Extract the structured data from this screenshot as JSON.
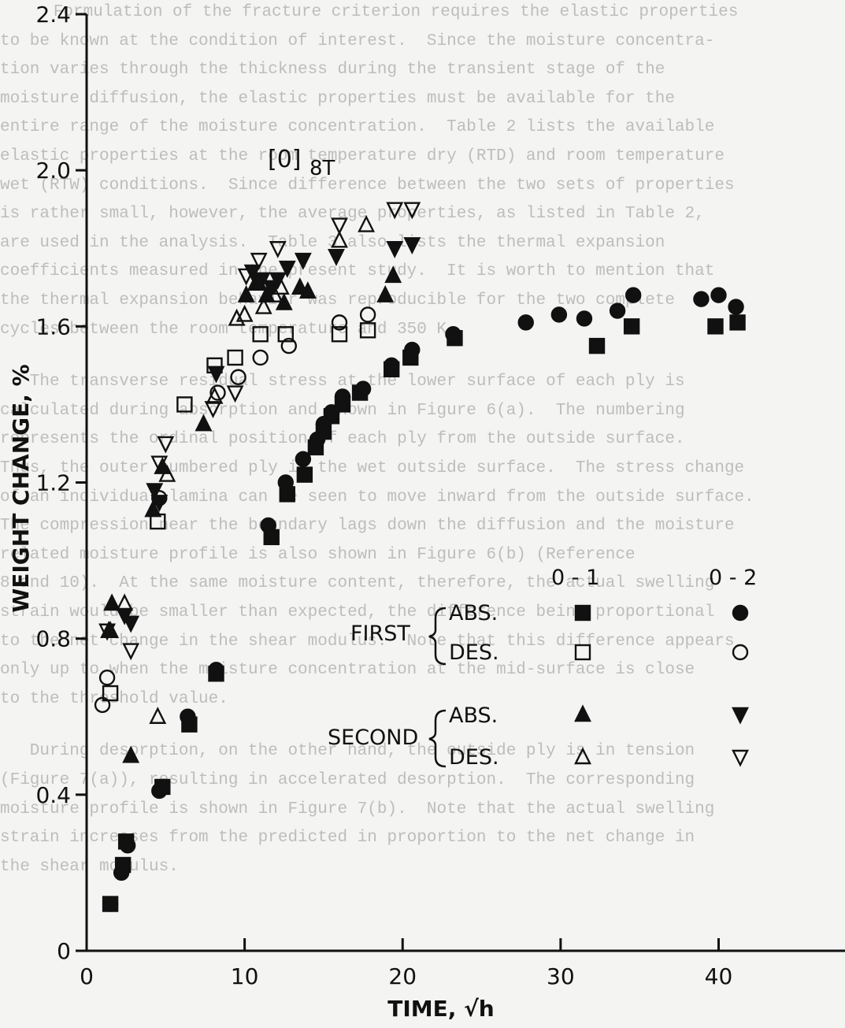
{
  "background_text": [
    "   Formulation of the fracture criterion requires the elastic properties",
    "to be known at the condition of interest.  Since the moisture concentra-",
    "tion varies through the thickness during the transient stage of the",
    "moisture diffusion, the elastic properties must be available for the",
    "entire range of the moisture concentration.  Table 2 lists the available",
    "elastic properties at the room temperature dry (RTD) and room temperature",
    "wet (RTW) conditions.  Since difference between the two sets of properties",
    "is rather small, however, the average properties, as listed in Table 2,",
    "are used in the analysis.  Table 3 also lists the thermal expansion",
    "coefficients measured in the present study.  It is worth to mention that",
    "the thermal expansion behavior was reproducible for the two complete",
    "cycles between the room temperature and 350 K.",
    "",
    "   The transverse residual stress at the lower surface of each ply is",
    "calculated during absorption and shown in Figure 6(a).  The numbering",
    "represents the ordinal position of each ply from the outside surface.",
    "Thus, the outer numbered ply is the wet outside surface.  The stress change",
    "of an individual lamina can be seen to move inward from the outside surface.",
    "The compression near the boundary lags down the diffusion and the moisture",
    "related moisture profile is also shown in Figure 6(b) (Reference",
    "8 and 10).  At the same moisture content, therefore, the actual swelling",
    "strain would be smaller than expected, the difference being proportional",
    "to the net change in the shear modulus.  Note that this difference appears",
    "only up to when the moisture concentration at the mid-surface is close",
    "to the threshold value.",
    "",
    "   During desorption, on the other hand, the outside ply is in tension",
    "(Figure 7(a)), resulting in accelerated desorption.  The corresponding",
    "moisture profile is shown in Figure 7(b).  Note that the actual swelling",
    "strain increases from the predicted in proportion to the net change in",
    "the shear modulus."
  ],
  "chart_data": {
    "type": "scatter",
    "title": "[0]8T",
    "title_main": "[0]",
    "title_sub": "8T",
    "xlabel": "TIME, √h",
    "ylabel": "WEIGHT CHANGE, %",
    "xlim": [
      0,
      48
    ],
    "ylim": [
      0,
      2.4
    ],
    "xticks": [
      0,
      10,
      20,
      30,
      40
    ],
    "xtick_labels": [
      "0",
      "10",
      "20",
      "30",
      "40"
    ],
    "yticks": [
      0,
      0.4,
      0.8,
      1.2,
      1.6,
      2.0,
      2.4
    ],
    "ytick_labels": [
      "0",
      "0.4",
      "0.8",
      "1.2",
      "1.6",
      "2.0",
      "2.4"
    ],
    "grid": false,
    "legend": {
      "placement": "lower-right",
      "columns": [
        "0 - 1",
        "0 - 2"
      ],
      "groups": [
        {
          "label": "FIRST",
          "rows": [
            {
              "label": "ABS.",
              "markers": [
                "square-filled",
                "circle-filled"
              ]
            },
            {
              "label": "DES.",
              "markers": [
                "square-open",
                "circle-open"
              ]
            }
          ]
        },
        {
          "label": "SECOND",
          "rows": [
            {
              "label": "ABS.",
              "markers": [
                "triangle-up-filled",
                "triangle-down-filled"
              ]
            },
            {
              "label": "DES.",
              "markers": [
                "triangle-up-open",
                "triangle-down-open"
              ]
            }
          ]
        }
      ]
    },
    "series": [
      {
        "name": "FIRST ABS. 0-1",
        "marker": "square-filled",
        "x": [
          1.5,
          2.3,
          2.5,
          4.8,
          6.5,
          8.2,
          11.7,
          12.7,
          13.8,
          14.5,
          15.0,
          15.5,
          16.2,
          17.3,
          19.3,
          20.5,
          23.3,
          32.3,
          34.5,
          39.8,
          41.2
        ],
        "y": [
          0.12,
          0.22,
          0.28,
          0.42,
          0.58,
          0.71,
          1.06,
          1.17,
          1.22,
          1.29,
          1.33,
          1.37,
          1.4,
          1.43,
          1.49,
          1.52,
          1.57,
          1.55,
          1.6,
          1.6,
          1.61
        ]
      },
      {
        "name": "FIRST ABS. 0-2",
        "marker": "circle-filled",
        "x": [
          1.5,
          2.2,
          2.6,
          4.6,
          6.4,
          8.2,
          11.5,
          12.6,
          13.7,
          14.6,
          15.0,
          15.5,
          16.2,
          17.5,
          19.3,
          20.6,
          23.2,
          27.8,
          29.9,
          31.5,
          33.6,
          34.6,
          38.9,
          40.0,
          41.1
        ],
        "y": [
          0.12,
          0.2,
          0.27,
          0.41,
          0.6,
          0.72,
          1.09,
          1.2,
          1.26,
          1.31,
          1.35,
          1.38,
          1.42,
          1.44,
          1.5,
          1.54,
          1.58,
          1.61,
          1.63,
          1.62,
          1.64,
          1.68,
          1.67,
          1.68,
          1.65
        ]
      },
      {
        "name": "FIRST DES. 0-1",
        "marker": "square-open",
        "x": [
          1.5,
          4.5,
          6.2,
          8.1,
          9.4,
          11.0,
          12.6,
          16.0,
          17.8
        ],
        "y": [
          0.66,
          1.1,
          1.4,
          1.5,
          1.52,
          1.58,
          1.58,
          1.58,
          1.59
        ]
      },
      {
        "name": "FIRST DES. 0-2",
        "marker": "circle-open",
        "x": [
          1.0,
          1.3,
          4.6,
          8.3,
          9.6,
          11.0,
          12.8,
          16.0,
          17.8
        ],
        "y": [
          0.63,
          0.7,
          1.16,
          1.43,
          1.47,
          1.52,
          1.55,
          1.61,
          1.63
        ]
      },
      {
        "name": "SECOND ABS. 0-1",
        "marker": "triangle-up-filled",
        "x": [
          1.4,
          1.6,
          2.8,
          4.2,
          4.8,
          7.4,
          10.1,
          10.7,
          10.9,
          11.4,
          12.5,
          13.5,
          14.0,
          18.9,
          19.4
        ],
        "y": [
          0.82,
          0.89,
          0.5,
          1.13,
          1.24,
          1.35,
          1.68,
          1.71,
          1.71,
          1.68,
          1.66,
          1.7,
          1.69,
          1.68,
          1.73
        ]
      },
      {
        "name": "SECOND ABS. 0-2",
        "marker": "triangle-down-filled",
        "x": [
          2.4,
          2.8,
          4.3,
          4.6,
          8.2,
          10.5,
          11.1,
          11.7,
          12.1,
          12.7,
          13.7,
          15.8,
          19.5,
          20.6
        ],
        "y": [
          0.86,
          0.84,
          1.18,
          1.15,
          1.48,
          1.74,
          1.72,
          1.7,
          1.72,
          1.75,
          1.77,
          1.78,
          1.8,
          1.81
        ]
      },
      {
        "name": "SECOND DES. 0-1",
        "marker": "triangle-up-open",
        "x": [
          1.5,
          2.4,
          4.5,
          5.1,
          8.1,
          9.5,
          10.0,
          11.2,
          11.9,
          12.3,
          16.0,
          17.7
        ],
        "y": [
          0.82,
          0.89,
          0.6,
          1.22,
          1.42,
          1.62,
          1.63,
          1.65,
          1.68,
          1.7,
          1.82,
          1.86
        ]
      },
      {
        "name": "SECOND DES. 0-2",
        "marker": "triangle-down-open",
        "x": [
          1.3,
          2.8,
          4.6,
          5.0,
          8.0,
          9.4,
          10.1,
          10.9,
          12.1,
          16.0,
          19.5,
          20.6
        ],
        "y": [
          0.82,
          0.77,
          1.25,
          1.3,
          1.39,
          1.43,
          1.73,
          1.77,
          1.8,
          1.86,
          1.9,
          1.9
        ]
      }
    ]
  }
}
